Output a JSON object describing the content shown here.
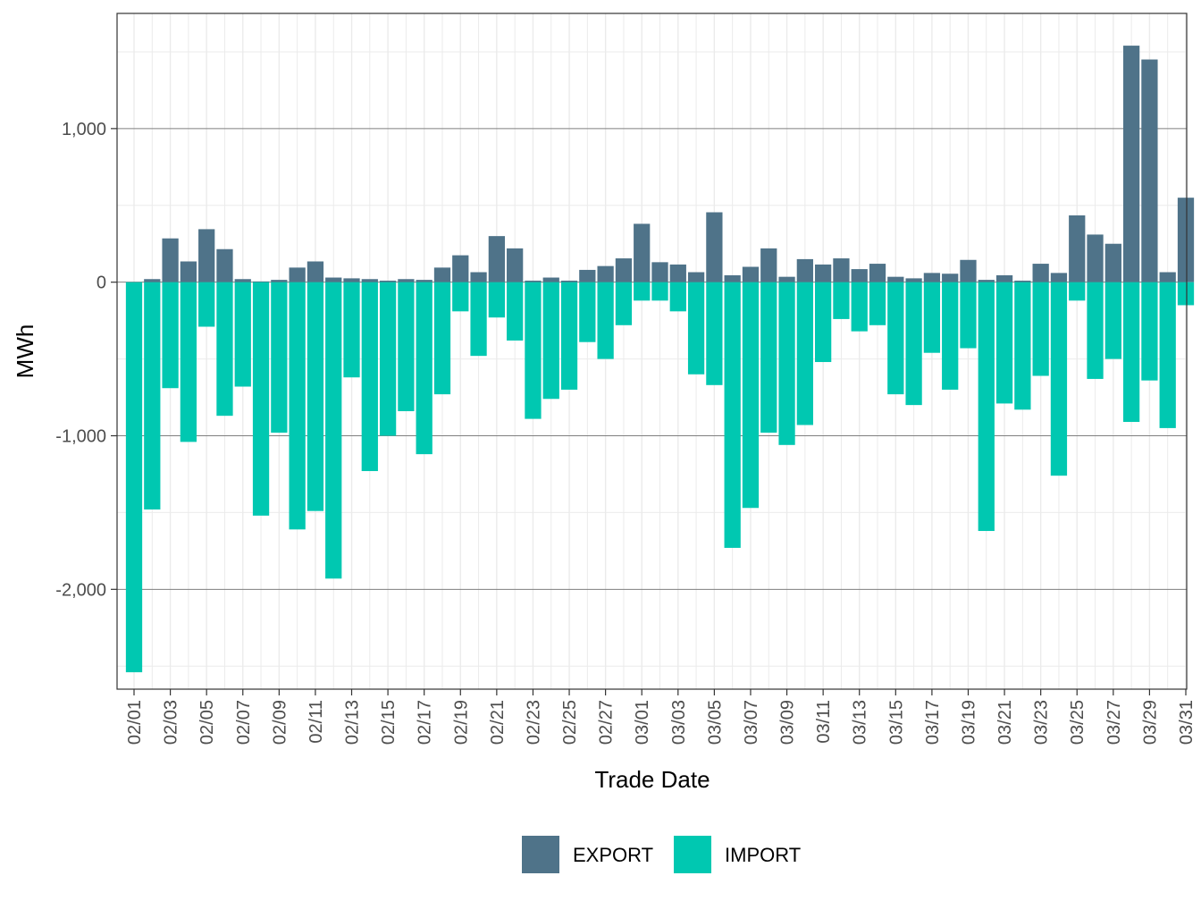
{
  "chart_data": {
    "type": "bar",
    "title": "",
    "xlabel": "Trade Date",
    "ylabel": "MWh",
    "ylim": [
      -2650,
      1750
    ],
    "yticks": [
      -2000,
      -1000,
      0,
      1000
    ],
    "ytick_labels": [
      "-2,000",
      "-1,000",
      "0",
      "1,000"
    ],
    "x_tick_labels": [
      "02/01",
      "02/03",
      "02/05",
      "02/07",
      "02/09",
      "02/11",
      "02/13",
      "02/15",
      "02/17",
      "02/19",
      "02/21",
      "02/23",
      "02/25",
      "02/27",
      "03/01",
      "03/03",
      "03/05",
      "03/07",
      "03/09",
      "03/11",
      "03/13",
      "03/15",
      "03/17",
      "03/19",
      "03/21",
      "03/23",
      "03/25",
      "03/27",
      "03/29",
      "03/31"
    ],
    "categories": [
      "02/01",
      "02/02",
      "02/03",
      "02/04",
      "02/05",
      "02/06",
      "02/07",
      "02/08",
      "02/09",
      "02/10",
      "02/11",
      "02/12",
      "02/13",
      "02/14",
      "02/15",
      "02/16",
      "02/17",
      "02/18",
      "02/19",
      "02/20",
      "02/21",
      "02/22",
      "02/23",
      "02/24",
      "02/25",
      "02/26",
      "02/27",
      "02/28",
      "03/01",
      "03/02",
      "03/03",
      "03/04",
      "03/05",
      "03/06",
      "03/07",
      "03/08",
      "03/09",
      "03/10",
      "03/11",
      "03/12",
      "03/13",
      "03/14",
      "03/15",
      "03/16",
      "03/17",
      "03/18",
      "03/19",
      "03/20",
      "03/21",
      "03/22",
      "03/23",
      "03/24",
      "03/25",
      "03/26",
      "03/27",
      "03/28",
      "03/29",
      "03/30",
      "03/31"
    ],
    "series": [
      {
        "name": "EXPORT",
        "color": "#4f7389",
        "values": [
          0,
          20,
          285,
          135,
          345,
          215,
          20,
          5,
          15,
          95,
          135,
          30,
          25,
          20,
          10,
          20,
          15,
          95,
          175,
          65,
          300,
          220,
          10,
          30,
          10,
          80,
          105,
          155,
          380,
          130,
          115,
          65,
          455,
          45,
          100,
          220,
          35,
          150,
          115,
          155,
          85,
          120,
          35,
          25,
          60,
          55,
          145,
          15,
          45,
          10,
          120,
          60,
          435,
          310,
          250,
          1540,
          1450,
          65,
          550
        ]
      },
      {
        "name": "IMPORT",
        "color": "#00c8b1",
        "values": [
          -2540,
          -1480,
          -690,
          -1040,
          -290,
          -870,
          -680,
          -1520,
          -980,
          -1610,
          -1490,
          -1930,
          -620,
          -1230,
          -1000,
          -840,
          -1120,
          -730,
          -190,
          -480,
          -230,
          -380,
          -890,
          -760,
          -700,
          -390,
          -500,
          -280,
          -120,
          -120,
          -190,
          -600,
          -670,
          -1730,
          -1470,
          -980,
          -1060,
          -930,
          -520,
          -240,
          -320,
          -280,
          -730,
          -800,
          -460,
          -700,
          -430,
          -1620,
          -790,
          -830,
          -610,
          -1260,
          -120,
          -630,
          -500,
          -910,
          -640,
          -950,
          -150
        ]
      }
    ],
    "legend": {
      "position": "bottom",
      "entries": [
        {
          "label": "EXPORT",
          "color": "#4f7389"
        },
        {
          "label": "IMPORT",
          "color": "#00c8b1"
        }
      ]
    }
  }
}
